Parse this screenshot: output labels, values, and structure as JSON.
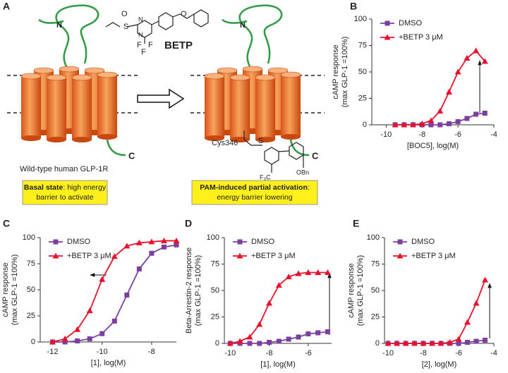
{
  "panel_a": {
    "label": "A",
    "n_left": "N",
    "c_left": "C",
    "compound": "BETP",
    "n_right": "N",
    "c_right": "C",
    "cys": "Cys346",
    "s_link": "S",
    "f3c": "F₃C",
    "obn": "OBn",
    "caption": "Wild-type human GLP-1R",
    "basal": {
      "bold": "Basal state",
      "rest": ": high energy",
      "line2": "barrier to activate"
    },
    "pam": {
      "bold": "PAM-induced partial activation",
      "rest": ":",
      "line2": "energy barrier lowering"
    },
    "atoms": [
      "S",
      "O",
      "N",
      "N",
      "F",
      "F",
      "F",
      "O"
    ]
  },
  "chart_data": [
    {
      "type": "line",
      "panel": "B",
      "ylabel": [
        "cAMP response",
        "(max GLP-1 =100%)"
      ],
      "xlabel": "[BOC5], log(M)",
      "xlim": [
        -10.8,
        -4
      ],
      "xticks": [
        -10,
        -8,
        -6,
        -4
      ],
      "ylim": [
        0,
        100
      ],
      "yticks": [
        0,
        25,
        50,
        75,
        100
      ],
      "x": [
        -9.5,
        -9,
        -8.5,
        -8,
        -7.5,
        -7,
        -6.5,
        -6,
        -5.5,
        -5,
        -4.5
      ],
      "series": [
        {
          "name": "DMSO",
          "color": "#7b3f9e",
          "marker": "square",
          "values": [
            0,
            0,
            0,
            0,
            0,
            0,
            1,
            3,
            6,
            10,
            11
          ]
        },
        {
          "name": "+BETP 3 μM",
          "color": "#e8112d",
          "marker": "triangle",
          "values": [
            0,
            0,
            0,
            1,
            4,
            13,
            31,
            50,
            63,
            70,
            60
          ]
        }
      ]
    },
    {
      "type": "line",
      "panel": "C",
      "ylabel": [
        "cAMP response",
        "(max GLP-1 =100%)"
      ],
      "xlabel": "[1], log(M)",
      "xlim": [
        -12.5,
        -7
      ],
      "xticks": [
        -12,
        -10,
        -8
      ],
      "ylim": [
        0,
        100
      ],
      "yticks": [
        0,
        25,
        50,
        75,
        100
      ],
      "x": [
        -12,
        -11.5,
        -11,
        -10.5,
        -10,
        -9.5,
        -9,
        -8.5,
        -8,
        -7.5,
        -7
      ],
      "series": [
        {
          "name": "DMSO",
          "color": "#7b3f9e",
          "marker": "square",
          "values": [
            0,
            0,
            1,
            3,
            8,
            20,
            45,
            70,
            85,
            91,
            93
          ]
        },
        {
          "name": "+BETP 3 μM",
          "color": "#e8112d",
          "marker": "triangle",
          "values": [
            0,
            3,
            12,
            30,
            60,
            82,
            92,
            95,
            96,
            97,
            97
          ]
        }
      ]
    },
    {
      "type": "line",
      "panel": "D",
      "ylabel": [
        "Beta-Arrestin-2 response",
        "(max GLP-1 =100%)"
      ],
      "xlabel": "[1], log(M)",
      "xlim": [
        -10.3,
        -4.8
      ],
      "xticks": [
        -10,
        -8,
        -6
      ],
      "ylim": [
        0,
        100
      ],
      "yticks": [
        0,
        25,
        50,
        75,
        100
      ],
      "x": [
        -10,
        -9.5,
        -9,
        -8.5,
        -8,
        -7.5,
        -7,
        -6.5,
        -6,
        -5.5,
        -5
      ],
      "series": [
        {
          "name": "DMSO",
          "color": "#7b3f9e",
          "marker": "square",
          "values": [
            0,
            0,
            0,
            0,
            1,
            2,
            4,
            6,
            9,
            10,
            11
          ]
        },
        {
          "name": "+BETP 3 μM",
          "color": "#e8112d",
          "marker": "triangle",
          "values": [
            0,
            2,
            6,
            18,
            38,
            55,
            63,
            66,
            67,
            67,
            67
          ]
        }
      ]
    },
    {
      "type": "line",
      "panel": "E",
      "ylabel": [
        "cAMP response",
        "(max GLP-1 =100%)"
      ],
      "xlabel": "[2], log(M)",
      "xlim": [
        -10.2,
        -4
      ],
      "xticks": [
        -10,
        -8,
        -6,
        -4
      ],
      "ylim": [
        0,
        100
      ],
      "yticks": [
        0,
        25,
        50,
        75,
        100
      ],
      "x": [
        -10,
        -9.5,
        -9,
        -8.5,
        -8,
        -7.5,
        -7,
        -6.5,
        -6,
        -5.5,
        -5,
        -4.5
      ],
      "series": [
        {
          "name": "DMSO",
          "color": "#7b3f9e",
          "marker": "square",
          "values": [
            0,
            0,
            0,
            0,
            0,
            0,
            0,
            0,
            0,
            1,
            2,
            3
          ]
        },
        {
          "name": "+BETP 3 μM",
          "color": "#e8112d",
          "marker": "triangle",
          "values": [
            0,
            0,
            0,
            0,
            0,
            0,
            0,
            1,
            4,
            20,
            38,
            60
          ]
        }
      ]
    }
  ]
}
